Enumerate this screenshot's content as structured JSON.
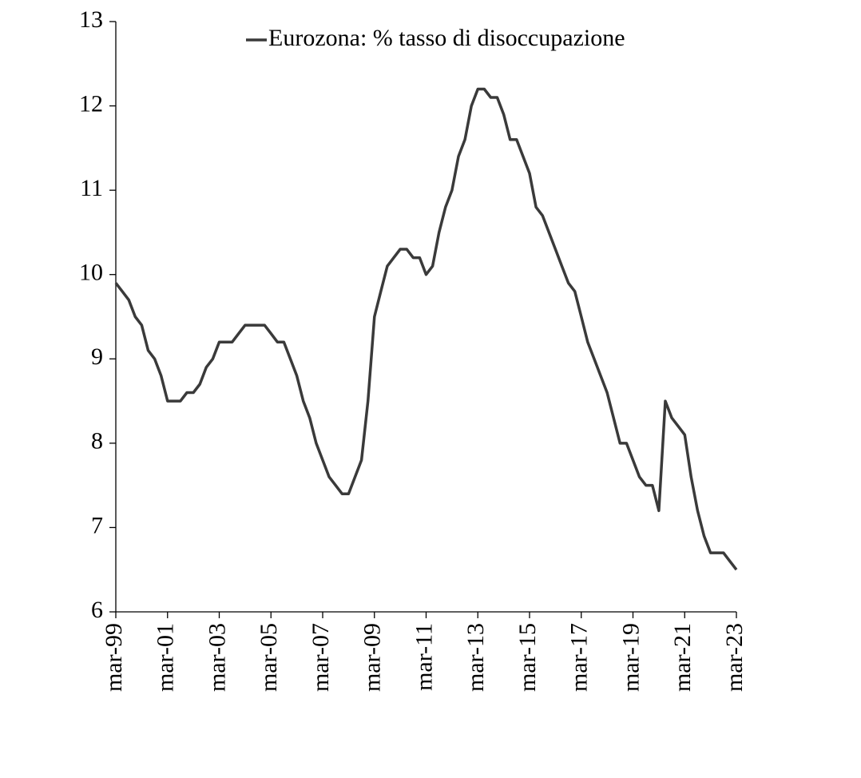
{
  "chart_data": {
    "type": "line",
    "series": [
      {
        "name": "Eurozona: % tasso di disoccupazione",
        "color": "#3a3a3a",
        "values": [
          9.9,
          9.8,
          9.7,
          9.5,
          9.4,
          9.1,
          9.0,
          8.8,
          8.5,
          8.5,
          8.5,
          8.6,
          8.6,
          8.7,
          8.9,
          9.0,
          9.2,
          9.2,
          9.2,
          9.3,
          9.4,
          9.4,
          9.4,
          9.4,
          9.3,
          9.2,
          9.2,
          9.0,
          8.8,
          8.5,
          8.3,
          8.0,
          7.8,
          7.6,
          7.5,
          7.4,
          7.4,
          7.6,
          7.8,
          8.5,
          9.5,
          9.8,
          10.1,
          10.2,
          10.3,
          10.3,
          10.2,
          10.2,
          10.0,
          10.1,
          10.5,
          10.8,
          11.0,
          11.4,
          11.6,
          12.0,
          12.2,
          12.2,
          12.1,
          12.1,
          11.9,
          11.6,
          11.6,
          11.4,
          11.2,
          10.8,
          10.7,
          10.5,
          10.3,
          10.1,
          9.9,
          9.8,
          9.5,
          9.2,
          9.0,
          8.8,
          8.6,
          8.3,
          8.0,
          8.0,
          7.8,
          7.6,
          7.5,
          7.5,
          7.2,
          8.5,
          8.3,
          8.2,
          8.1,
          7.6,
          7.2,
          6.9,
          6.7,
          6.7,
          6.7,
          6.6,
          6.5
        ]
      }
    ],
    "categories": [
      "mar-99",
      null,
      null,
      null,
      null,
      null,
      null,
      null,
      "mar-01",
      null,
      null,
      null,
      null,
      null,
      null,
      null,
      "mar-03",
      null,
      null,
      null,
      null,
      null,
      null,
      null,
      "mar-05",
      null,
      null,
      null,
      null,
      null,
      null,
      null,
      "mar-07",
      null,
      null,
      null,
      null,
      null,
      null,
      null,
      "mar-09",
      null,
      null,
      null,
      null,
      null,
      null,
      null,
      "mar-11",
      null,
      null,
      null,
      null,
      null,
      null,
      null,
      "mar-13",
      null,
      null,
      null,
      null,
      null,
      null,
      null,
      "mar-15",
      null,
      null,
      null,
      null,
      null,
      null,
      null,
      "mar-17",
      null,
      null,
      null,
      null,
      null,
      null,
      null,
      "mar-19",
      null,
      null,
      null,
      null,
      null,
      null,
      null,
      "mar-21",
      null,
      null,
      null,
      null,
      null,
      null,
      null,
      "mar-23"
    ],
    "ylim": [
      6,
      13
    ],
    "yticks": [
      6,
      7,
      8,
      9,
      10,
      11,
      12,
      13
    ],
    "grid": false,
    "legend": "top"
  }
}
